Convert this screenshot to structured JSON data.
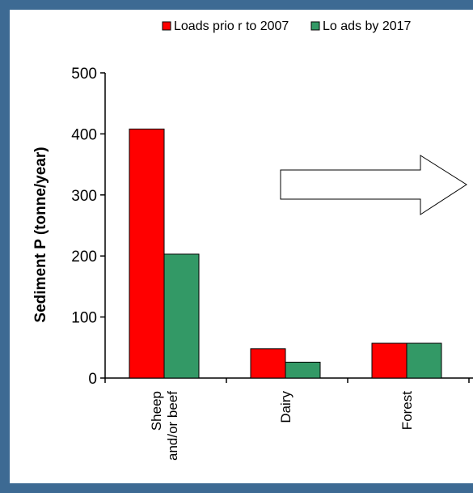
{
  "colors": {
    "background_border": "#3d6a93",
    "plot_background": "#ffffff"
  },
  "chart_data": {
    "type": "bar",
    "title": "",
    "xlabel": "",
    "ylabel": "Sediment P (tonne/year)",
    "ylim": [
      0,
      500
    ],
    "yticks": [
      0,
      100,
      200,
      300,
      400,
      500
    ],
    "categories": [
      [
        "Sheep",
        "and/or beef"
      ],
      [
        "Dairy"
      ],
      [
        "Forest"
      ]
    ],
    "series": [
      {
        "name": "Loads prio r to 2007",
        "color": "#ff0000",
        "values": [
          408,
          48,
          57
        ]
      },
      {
        "name": "Lo ads by 2017",
        "color": "#339966",
        "values": [
          203,
          26,
          57
        ]
      }
    ],
    "legend_position": "top-right",
    "grid": false,
    "annotation": {
      "type": "arrow",
      "direction": "right",
      "fill": "#ffffff"
    }
  }
}
